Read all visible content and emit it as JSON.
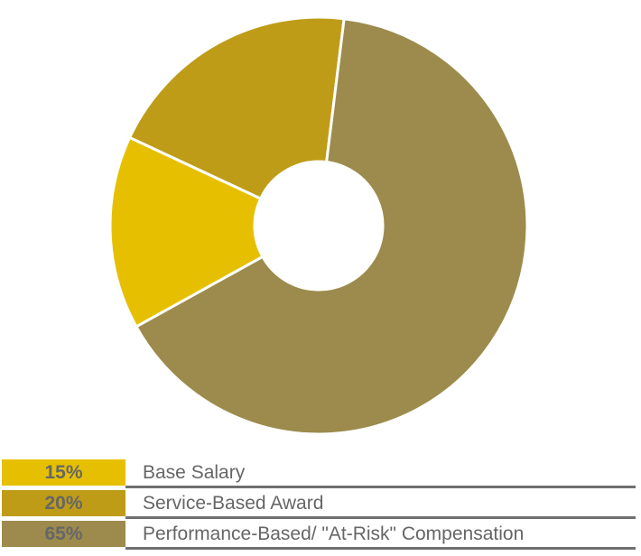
{
  "chart_data": {
    "type": "pie",
    "donut": true,
    "title": "",
    "slices": [
      {
        "label": "Base Salary",
        "value": 15,
        "value_label": "15%",
        "color": "#E6C000"
      },
      {
        "label": "Service-Based Award",
        "value": 20,
        "value_label": "20%",
        "color": "#BE9C18"
      },
      {
        "label": "Performance-Based/ \"At-Risk\" Compensation",
        "value": 65,
        "value_label": "65%",
        "color": "#9C8B4C"
      }
    ],
    "legend_position": "bottom"
  },
  "colors": {
    "legend_text": "#666666",
    "rule": "#6F6F6F",
    "separator": "#FFFFFF"
  }
}
